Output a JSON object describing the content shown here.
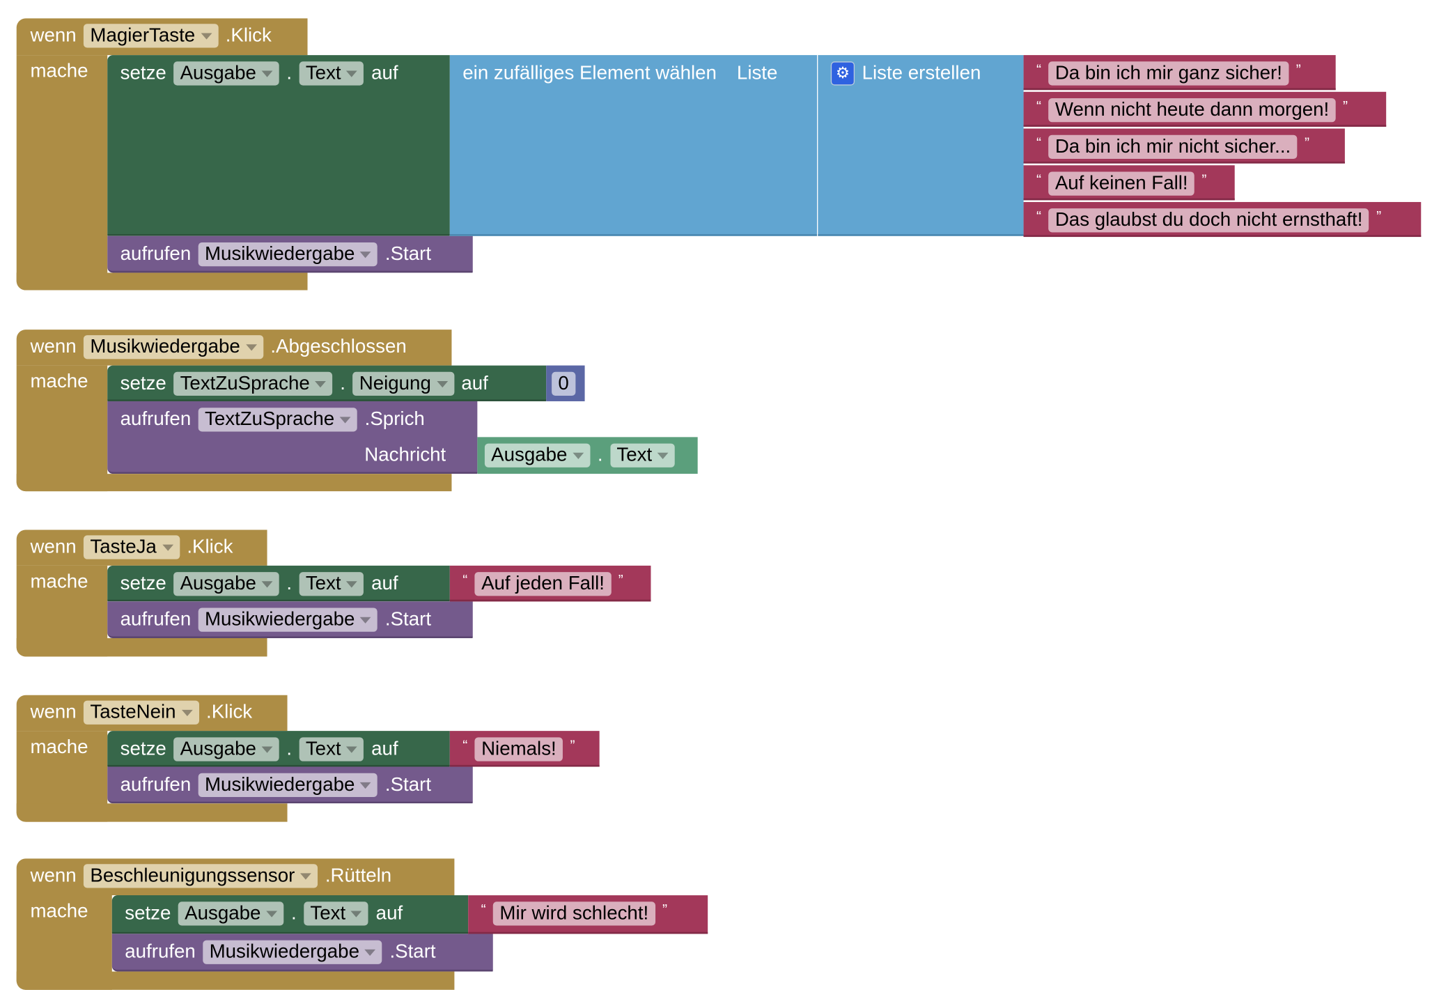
{
  "events": [
    {
      "wenn": "wenn",
      "component": "MagierTaste",
      "event": ".Klick",
      "mache": "mache",
      "set": {
        "kw": "setze",
        "comp": "Ausgabe",
        "dot": ".",
        "prop": "Text",
        "auf": "auf"
      },
      "random": {
        "label": "ein zufälliges Element wählen",
        "list_label": "Liste"
      },
      "make_list": {
        "icon": "gear-icon",
        "label": "Liste erstellen"
      },
      "strings": [
        "Da bin ich mir ganz sicher!",
        "Wenn nicht heute dann morgen!",
        "Da bin ich mir nicht sicher...",
        "Auf keinen Fall!",
        "Das glaubst du doch nicht ernsthaft!"
      ],
      "call": {
        "kw": "aufrufen",
        "comp": "Musikwiedergabe",
        "method": ".Start"
      }
    },
    {
      "wenn": "wenn",
      "component": "Musikwiedergabe",
      "event": ".Abgeschlossen",
      "mache": "mache",
      "set": {
        "kw": "setze",
        "comp": "TextZuSprache",
        "dot": ".",
        "prop": "Neigung",
        "auf": "auf",
        "value": "0"
      },
      "call": {
        "kw": "aufrufen",
        "comp": "TextZuSprache",
        "method": ".Sprich",
        "arg": "Nachricht"
      },
      "getter": {
        "comp": "Ausgabe",
        "dot": ".",
        "prop": "Text"
      }
    },
    {
      "wenn": "wenn",
      "component": "TasteJa",
      "event": ".Klick",
      "mache": "mache",
      "set": {
        "kw": "setze",
        "comp": "Ausgabe",
        "dot": ".",
        "prop": "Text",
        "auf": "auf",
        "string": "Auf jeden Fall!"
      },
      "call": {
        "kw": "aufrufen",
        "comp": "Musikwiedergabe",
        "method": ".Start"
      }
    },
    {
      "wenn": "wenn",
      "component": "TasteNein",
      "event": ".Klick",
      "mache": "mache",
      "set": {
        "kw": "setze",
        "comp": "Ausgabe",
        "dot": ".",
        "prop": "Text",
        "auf": "auf",
        "string": "Niemals!"
      },
      "call": {
        "kw": "aufrufen",
        "comp": "Musikwiedergabe",
        "method": ".Start"
      }
    },
    {
      "wenn": "wenn",
      "component": "Beschleunigungssensor",
      "event": ".Rütteln",
      "mache": "mache",
      "set": {
        "kw": "setze",
        "comp": "Ausgabe",
        "dot": ".",
        "prop": "Text",
        "auf": "auf",
        "string": "Mir wird schlecht!"
      },
      "call": {
        "kw": "aufrufen",
        "comp": "Musikwiedergabe",
        "method": ".Start"
      }
    }
  ],
  "quote_open": "“",
  "quote_close": "”",
  "colors": {
    "event": "#ad8d45",
    "setter": "#37674a",
    "list": "#61a5d1",
    "text": "#a3385a",
    "call": "#745a8c",
    "number": "#5b67a5",
    "getter": "#5b9f7c"
  }
}
